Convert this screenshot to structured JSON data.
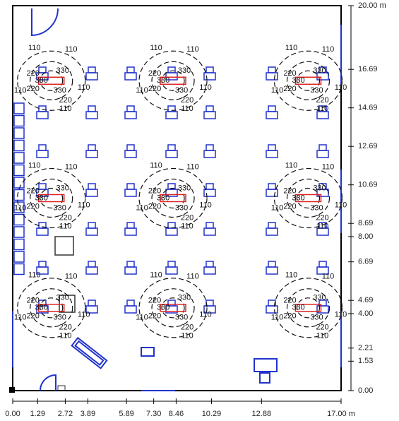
{
  "x_axis": {
    "ticks": [
      {
        "value": 0,
        "label": "0.00"
      },
      {
        "value": 1.29,
        "label": "1.29"
      },
      {
        "value": 2.72,
        "label": "2.72"
      },
      {
        "value": 3.89,
        "label": "3.89"
      },
      {
        "value": 5.89,
        "label": "5.89"
      },
      {
        "value": 7.3,
        "label": "7.30"
      },
      {
        "value": 8.46,
        "label": "8.46"
      },
      {
        "value": 10.29,
        "label": "10.29"
      },
      {
        "value": 12.88,
        "label": "12.88"
      },
      {
        "value": 17.0,
        "label": "17.00 m"
      }
    ]
  },
  "y_axis": {
    "ticks": [
      {
        "value": 0,
        "label": "0.00"
      },
      {
        "value": 1.53,
        "label": "1.53"
      },
      {
        "value": 2.21,
        "label": "2.21"
      },
      {
        "value": 4.0,
        "label": "4.00"
      },
      {
        "value": 4.69,
        "label": "4.69"
      },
      {
        "value": 6.69,
        "label": "6.69"
      },
      {
        "value": 8.0,
        "label": "8.00"
      },
      {
        "value": 8.69,
        "label": "8.69"
      },
      {
        "value": 10.69,
        "label": "10.69"
      },
      {
        "value": 12.69,
        "label": "12.69"
      },
      {
        "value": 14.69,
        "label": "14.69"
      },
      {
        "value": 16.69,
        "label": "16.69"
      },
      {
        "value": 20.0,
        "label": "20.00 m"
      }
    ]
  },
  "contour_levels": [
    "110",
    "220",
    "330"
  ]
}
